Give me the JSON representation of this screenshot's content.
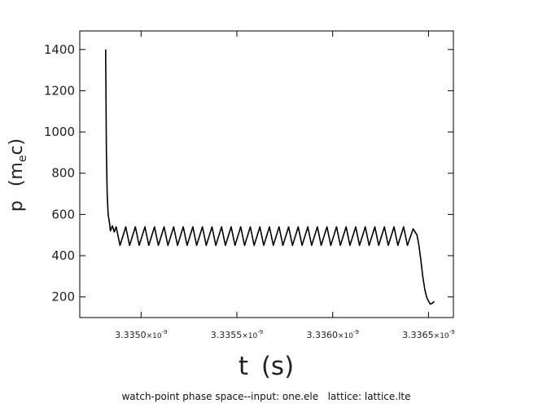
{
  "chart_data": {
    "type": "line",
    "title": "",
    "xlabel": "t (s)",
    "ylabel": "p (m_e c)",
    "ylabel_parts": {
      "main": "p",
      "open": "(m",
      "sub": "e",
      "close": "c)"
    },
    "caption": "watch-point phase space--input: one.ele   lattice: lattice.lte",
    "xlim": [
      3.33468e-09,
      3.33663e-09
    ],
    "ylim": [
      100,
      1490
    ],
    "x_ticks": [
      3.335e-09,
      3.3355e-09,
      3.336e-09,
      3.3365e-09
    ],
    "x_tick_labels": [
      {
        "mantissa": "3.3350",
        "times": "×10",
        "exp": "-9"
      },
      {
        "mantissa": "3.3355",
        "times": "×10",
        "exp": "-9"
      },
      {
        "mantissa": "3.3360",
        "times": "×10",
        "exp": "-9"
      },
      {
        "mantissa": "3.3365",
        "times": "×10",
        "exp": "-9"
      }
    ],
    "y_ticks": [
      200,
      400,
      600,
      800,
      1000,
      1200,
      1400
    ],
    "y_tick_labels": [
      "200",
      "400",
      "600",
      "800",
      "1000",
      "1200",
      "1400"
    ],
    "grid": false,
    "series": [
      {
        "x": [
          3.334815e-09,
          3.334819e-09,
          3.334823e-09,
          3.334828e-09,
          3.334835e-09,
          3.33484e-09,
          3.33485e-09,
          3.33486e-09,
          3.33487e-09,
          3.33489e-09,
          3.33492e-09,
          3.33494e-09,
          3.33497e-09,
          3.33499e-09,
          3.33502e-09,
          3.33504e-09,
          3.33507e-09,
          3.33509e-09,
          3.33512e-09,
          3.33514e-09,
          3.33517e-09,
          3.33519e-09,
          3.33522e-09,
          3.33524e-09,
          3.33527e-09,
          3.33529e-09,
          3.33532e-09,
          3.33534e-09,
          3.33537e-09,
          3.33539e-09,
          3.33542e-09,
          3.33544e-09,
          3.33547e-09,
          3.33549e-09,
          3.33552e-09,
          3.33554e-09,
          3.33557e-09,
          3.33559e-09,
          3.33562e-09,
          3.33564e-09,
          3.33567e-09,
          3.33569e-09,
          3.33572e-09,
          3.33574e-09,
          3.33577e-09,
          3.33579e-09,
          3.33582e-09,
          3.33584e-09,
          3.33587e-09,
          3.33589e-09,
          3.33592e-09,
          3.33594e-09,
          3.33597e-09,
          3.33599e-09,
          3.33602e-09,
          3.33604e-09,
          3.33607e-09,
          3.33609e-09,
          3.33612e-09,
          3.33614e-09,
          3.33617e-09,
          3.33619e-09,
          3.33622e-09,
          3.33624e-09,
          3.33627e-09,
          3.33629e-09,
          3.33632e-09,
          3.33634e-09,
          3.33637e-09,
          3.33639e-09,
          3.33642e-09,
          3.33644e-09,
          3.33645e-09,
          3.33646e-09,
          3.33647e-09,
          3.33648e-09,
          3.33649e-09,
          3.3365e-09,
          3.33651e-09,
          3.33652e-09,
          3.33653e-09
        ],
        "y": [
          1400,
          900,
          700,
          600,
          560,
          520,
          545,
          515,
          540,
          450,
          540,
          450,
          540,
          450,
          540,
          450,
          540,
          450,
          540,
          450,
          540,
          450,
          540,
          450,
          540,
          450,
          540,
          450,
          540,
          450,
          540,
          450,
          540,
          450,
          540,
          450,
          540,
          450,
          540,
          450,
          540,
          450,
          540,
          450,
          540,
          450,
          540,
          450,
          540,
          450,
          540,
          450,
          540,
          450,
          540,
          450,
          540,
          450,
          540,
          450,
          540,
          450,
          540,
          450,
          540,
          450,
          540,
          450,
          540,
          450,
          530,
          500,
          450,
          380,
          300,
          240,
          200,
          180,
          165,
          170,
          178
        ]
      }
    ]
  }
}
